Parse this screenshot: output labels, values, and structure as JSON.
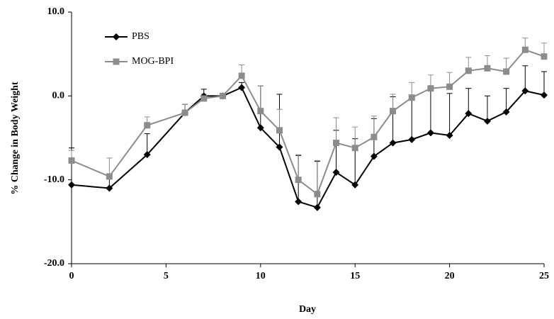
{
  "chart_data": {
    "type": "line",
    "x": [
      0,
      2,
      4,
      6,
      7,
      8,
      9,
      10,
      11,
      12,
      13,
      14,
      15,
      16,
      17,
      18,
      19,
      20,
      21,
      22,
      23,
      24,
      25
    ],
    "series": [
      {
        "name": "PBS",
        "color": "#000000",
        "marker": "diamond",
        "values": [
          -10.6,
          -11.0,
          -7.0,
          -2.0,
          0.0,
          0.0,
          1.0,
          -3.8,
          -6.1,
          -12.6,
          -13.3,
          -9.1,
          -10.6,
          -7.2,
          -5.6,
          -5.2,
          -4.4,
          -4.7,
          -2.1,
          -3.0,
          -1.9,
          0.6,
          0.1
        ],
        "errors": [
          4.4,
          1.5,
          2.5,
          1.0,
          0.8,
          0.3,
          0.6,
          5.0,
          6.3,
          5.5,
          5.5,
          5.0,
          5.5,
          4.5,
          5.5,
          5.0,
          5.0,
          5.0,
          3.0,
          3.0,
          2.8,
          3.0,
          2.8
        ]
      },
      {
        "name": "MOG-BPI",
        "color": "#8c8c8c",
        "marker": "square",
        "values": [
          -7.7,
          -9.6,
          -3.5,
          -2.0,
          -0.3,
          0.0,
          2.4,
          -1.8,
          -4.1,
          -10.0,
          -11.7,
          -5.6,
          -6.2,
          -4.9,
          -1.8,
          -0.2,
          0.9,
          1.1,
          3.0,
          3.3,
          2.9,
          5.5,
          4.7
        ],
        "errors": [
          1.2,
          2.2,
          1.0,
          1.0,
          0.5,
          0.2,
          1.3,
          3.0,
          2.5,
          3.0,
          4.0,
          3.0,
          2.5,
          2.5,
          2.0,
          1.8,
          1.6,
          1.7,
          1.6,
          1.5,
          1.6,
          1.4,
          1.6
        ]
      }
    ],
    "x_label": "Day",
    "y_label": "% Change in Body Weight",
    "xlim": [
      0,
      25
    ],
    "xticks": [
      0,
      5,
      10,
      15,
      20,
      25
    ],
    "ylim": [
      -20,
      10
    ],
    "yticks": [
      {
        "value": -20,
        "label": "-20.0"
      },
      {
        "value": -10,
        "label": "-10.0"
      },
      {
        "value": 0,
        "label": "0.0"
      },
      {
        "value": 10,
        "label": "10.0"
      }
    ],
    "legend": "upper left"
  }
}
